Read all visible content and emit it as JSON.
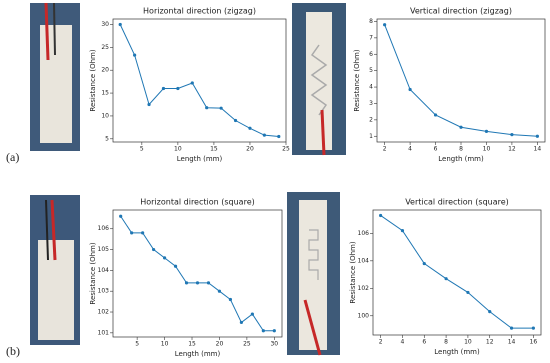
{
  "panel_labels": [
    "(a)",
    "(b)"
  ],
  "chart_data": [
    {
      "type": "line",
      "title": "Horizontal direction (zigzag)",
      "xlabel": "Length (mm)",
      "ylabel": "Resistance (Ohm)",
      "color": "#1f77b4",
      "x": [
        2,
        4,
        6,
        8,
        10,
        12,
        14,
        16,
        18,
        20,
        22,
        24
      ],
      "values": [
        30,
        23.3,
        12.5,
        16,
        16,
        17.2,
        11.8,
        11.7,
        9,
        7.3,
        5.8,
        5.5
      ],
      "xlim": [
        1,
        25
      ],
      "xticks": [
        5,
        10,
        15,
        20,
        25
      ],
      "ylim": [
        4.3,
        31.2
      ],
      "yticks": [
        5,
        10,
        15,
        20,
        25,
        30
      ]
    },
    {
      "type": "line",
      "title": "Vertical direction (zigzag)",
      "xlabel": "Length (mm)",
      "ylabel": "Resistance (Ohm)",
      "color": "#1f77b4",
      "x": [
        2,
        4,
        6,
        8,
        10,
        12,
        14
      ],
      "values": [
        7.8,
        3.85,
        2.3,
        1.55,
        1.3,
        1.1,
        1.0
      ],
      "xlim": [
        1.4,
        14.6
      ],
      "xticks": [
        2,
        4,
        6,
        8,
        10,
        12,
        14
      ],
      "ylim": [
        0.65,
        8.15
      ],
      "yticks": [
        1,
        2,
        3,
        4,
        5,
        6,
        7,
        8
      ]
    },
    {
      "type": "line",
      "title": "Horizontal direction (square)",
      "xlabel": "Length (mm)",
      "ylabel": "Resistance (Ohm)",
      "color": "#1f77b4",
      "x": [
        2,
        4,
        6,
        8,
        10,
        12,
        14,
        16,
        18,
        20,
        22,
        24,
        26,
        28,
        30
      ],
      "values": [
        106.6,
        105.8,
        105.8,
        105.0,
        104.6,
        104.2,
        103.4,
        103.4,
        103.4,
        103.0,
        102.6,
        101.5,
        101.9,
        101.1,
        101.1
      ],
      "xlim": [
        0.6,
        31.4
      ],
      "xticks": [
        5,
        10,
        15,
        20,
        25,
        30
      ],
      "ylim": [
        100.8,
        106.9
      ],
      "yticks": [
        101,
        102,
        103,
        104,
        105,
        106
      ]
    },
    {
      "type": "line",
      "title": "Vertical direction (square)",
      "xlabel": "Length (mm)",
      "ylabel": "Resistance (Ohm)",
      "color": "#1f77b4",
      "x": [
        2,
        4,
        6,
        8,
        10,
        12,
        14,
        16
      ],
      "values": [
        107.3,
        106.2,
        103.8,
        102.7,
        101.7,
        100.3,
        99.1,
        99.1
      ],
      "xlim": [
        1.3,
        16.7
      ],
      "xticks": [
        2,
        4,
        6,
        8,
        10,
        12,
        14,
        16
      ],
      "ylim": [
        98.6,
        107.7
      ],
      "yticks": [
        100,
        102,
        104,
        106
      ]
    }
  ]
}
